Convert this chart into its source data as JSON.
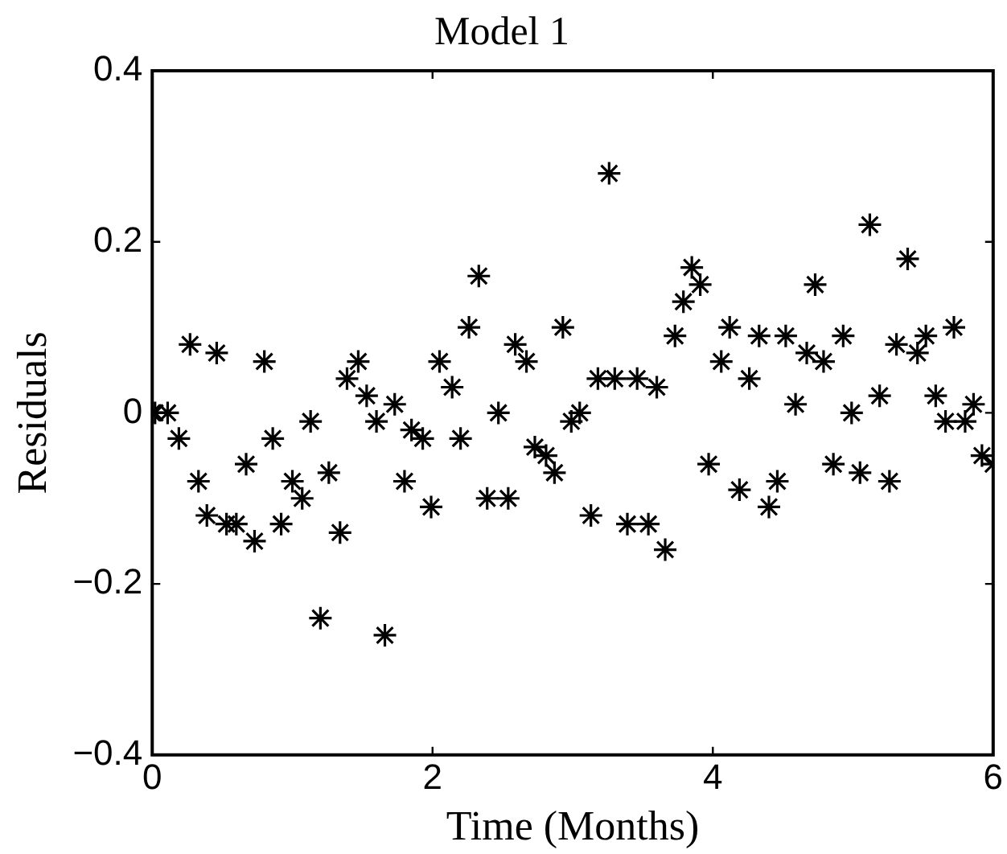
{
  "chart_data": {
    "type": "scatter",
    "title": "Model 1",
    "xlabel": "Time (Months)",
    "ylabel": "Residuals",
    "xlim": [
      0,
      6
    ],
    "xticks": [
      0,
      2,
      4,
      6
    ],
    "ylim": [
      -0.4,
      0.4
    ],
    "yticks": [
      {
        "value": -0.4,
        "label": "−0.4"
      },
      {
        "value": -0.2,
        "label": "−0.2"
      },
      0,
      0.2,
      0.4
    ],
    "grid": false,
    "legend": false,
    "marker": "cross",
    "series": [
      {
        "color": "#000000",
        "x": [
          0.0,
          0.02,
          0.11,
          0.19,
          0.27,
          0.33,
          0.39,
          0.46,
          0.53,
          0.6,
          0.67,
          0.73,
          0.8,
          0.86,
          0.92,
          1.0,
          1.07,
          1.13,
          1.2,
          1.26,
          1.34,
          1.39,
          1.47,
          1.53,
          1.6,
          1.66,
          1.73,
          1.8,
          1.85,
          1.93,
          1.99,
          2.05,
          2.14,
          2.2,
          2.26,
          2.33,
          2.39,
          2.47,
          2.54,
          2.59,
          2.67,
          2.73,
          2.81,
          2.87,
          2.93,
          2.99,
          3.05,
          3.13,
          3.18,
          3.26,
          3.3,
          3.39,
          3.46,
          3.54,
          3.6,
          3.66,
          3.73,
          3.79,
          3.85,
          3.91,
          3.97,
          4.06,
          4.12,
          4.19,
          4.26,
          4.33,
          4.4,
          4.46,
          4.52,
          4.59,
          4.67,
          4.73,
          4.79,
          4.86,
          4.93,
          4.99,
          5.05,
          5.12,
          5.19,
          5.26,
          5.31,
          5.39,
          5.46,
          5.52,
          5.59,
          5.66,
          5.72,
          5.8,
          5.86,
          5.92,
          6.0
        ],
        "values": [
          0.0,
          0.0,
          0.0,
          -0.03,
          0.08,
          -0.08,
          -0.12,
          0.07,
          -0.13,
          -0.13,
          -0.06,
          -0.15,
          0.06,
          -0.03,
          -0.13,
          -0.08,
          -0.1,
          -0.01,
          -0.24,
          -0.07,
          -0.14,
          0.04,
          0.06,
          0.02,
          -0.01,
          -0.26,
          0.01,
          -0.08,
          -0.02,
          -0.03,
          -0.11,
          0.06,
          0.03,
          -0.03,
          0.1,
          0.16,
          -0.1,
          0.0,
          -0.1,
          0.08,
          0.06,
          -0.04,
          -0.05,
          -0.07,
          0.1,
          -0.01,
          0.0,
          -0.12,
          0.04,
          0.28,
          0.04,
          -0.13,
          0.04,
          -0.13,
          0.03,
          -0.16,
          0.09,
          0.13,
          0.17,
          0.15,
          -0.06,
          0.06,
          0.1,
          -0.09,
          0.04,
          0.09,
          -0.11,
          -0.08,
          0.09,
          0.01,
          0.07,
          0.15,
          0.06,
          -0.06,
          0.09,
          0.0,
          -0.07,
          0.22,
          0.02,
          -0.08,
          0.08,
          0.18,
          0.07,
          0.09,
          0.02,
          -0.01,
          0.1,
          -0.01,
          0.01,
          -0.05,
          -0.06
        ]
      }
    ]
  }
}
